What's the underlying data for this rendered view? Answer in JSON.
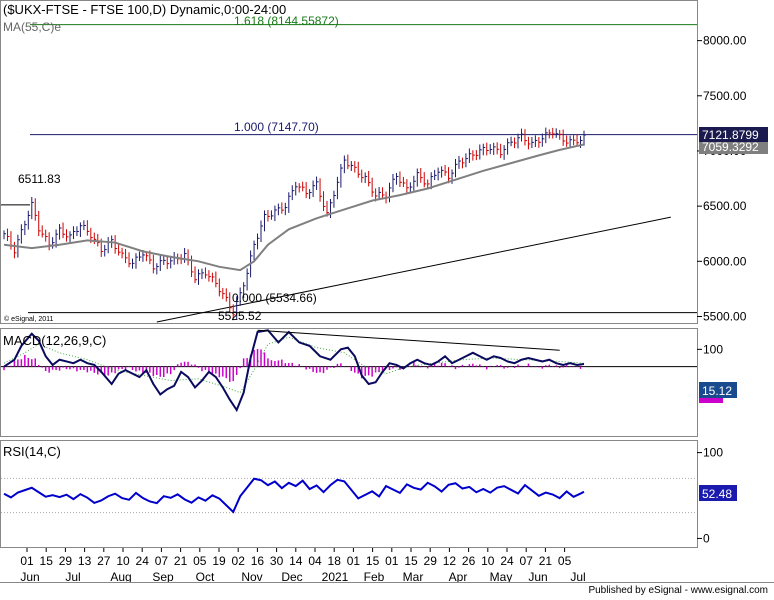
{
  "chart_data": [
    {
      "type": "line",
      "panel": "price",
      "title": "($UKX-FTSE - FTSE 100,D) Dynamic,0:00-24:00",
      "indicator_label": "MA(55,C)e",
      "watermark": "© eSignal, 2011",
      "ylim": [
        5450,
        8350
      ],
      "yticks": [
        "8000.00",
        "7500.00",
        "7000.00",
        "6500.00",
        "6000.00",
        "5500.00"
      ],
      "ytick_values": [
        8000,
        7500,
        7000,
        6500,
        6000,
        5500
      ],
      "last_price_tag": "7121.8799",
      "ma_tag": "7059.3292",
      "fib_levels": [
        {
          "label": "1.618 (8144.55872)",
          "value": 8144.56,
          "color": "#1a7a1a"
        },
        {
          "label": "1.000 (7147.70)",
          "value": 7147.7,
          "color": "#1a1a6e"
        },
        {
          "label": "0.000 (5534.66)",
          "value": 5534.66,
          "color": "#000000"
        }
      ],
      "annotations": [
        {
          "label": "6511.83",
          "value": 6511.83
        },
        {
          "label": "5525.52",
          "value": 5525.52
        }
      ],
      "price_series": [
        [
          0,
          6250
        ],
        [
          3,
          6100
        ],
        [
          6,
          6350
        ],
        [
          8,
          6511.83
        ],
        [
          10,
          6300
        ],
        [
          13,
          6150
        ],
        [
          16,
          6280
        ],
        [
          19,
          6220
        ],
        [
          22,
          6330
        ],
        [
          25,
          6240
        ],
        [
          28,
          6100
        ],
        [
          31,
          6180
        ],
        [
          34,
          6050
        ],
        [
          37,
          5980
        ],
        [
          40,
          6080
        ],
        [
          43,
          5950
        ],
        [
          46,
          6000
        ],
        [
          49,
          6010
        ],
        [
          52,
          6060
        ],
        [
          55,
          5850
        ],
        [
          58,
          5900
        ],
        [
          61,
          5800
        ],
        [
          64,
          5650
        ],
        [
          66,
          5534.66
        ],
        [
          68,
          5700
        ],
        [
          70,
          5900
        ],
        [
          72,
          6150
        ],
        [
          75,
          6400
        ],
        [
          78,
          6450
        ],
        [
          81,
          6500
        ],
        [
          84,
          6700
        ],
        [
          87,
          6620
        ],
        [
          90,
          6700
        ],
        [
          93,
          6420
        ],
        [
          96,
          6720
        ],
        [
          98,
          6920
        ],
        [
          101,
          6830
        ],
        [
          104,
          6750
        ],
        [
          107,
          6600
        ],
        [
          110,
          6600
        ],
        [
          113,
          6780
        ],
        [
          116,
          6650
        ],
        [
          119,
          6780
        ],
        [
          122,
          6700
        ],
        [
          125,
          6830
        ],
        [
          128,
          6770
        ],
        [
          131,
          6900
        ],
        [
          134,
          6950
        ],
        [
          137,
          7000
        ],
        [
          140,
          7030
        ],
        [
          143,
          6990
        ],
        [
          146,
          7080
        ],
        [
          149,
          7130
        ],
        [
          152,
          7060
        ],
        [
          155,
          7120
        ],
        [
          158,
          7180
        ],
        [
          161,
          7100
        ],
        [
          164,
          7080
        ],
        [
          167,
          7121.88
        ]
      ],
      "ma_series": [
        [
          0,
          6150
        ],
        [
          8,
          6120
        ],
        [
          16,
          6150
        ],
        [
          24,
          6190
        ],
        [
          32,
          6170
        ],
        [
          40,
          6090
        ],
        [
          48,
          6040
        ],
        [
          56,
          6000
        ],
        [
          62,
          5950
        ],
        [
          68,
          5920
        ],
        [
          72,
          6000
        ],
        [
          76,
          6150
        ],
        [
          82,
          6290
        ],
        [
          90,
          6390
        ],
        [
          98,
          6470
        ],
        [
          106,
          6550
        ],
        [
          114,
          6600
        ],
        [
          122,
          6660
        ],
        [
          130,
          6740
        ],
        [
          138,
          6820
        ],
        [
          146,
          6890
        ],
        [
          154,
          6960
        ],
        [
          160,
          7010
        ],
        [
          167,
          7059.33
        ]
      ],
      "trendline_support": [
        [
          44,
          5450
        ],
        [
          192,
          6400
        ]
      ]
    },
    {
      "type": "line",
      "panel": "macd",
      "title": "MACD(12,26,9,C)",
      "ylim": [
        -400,
        200
      ],
      "yticks": [
        "100"
      ],
      "ytick_values": [
        100
      ],
      "last_value_tag": "15.12",
      "signal_tag": "",
      "macd_series": [
        [
          0,
          0
        ],
        [
          3,
          40
        ],
        [
          5,
          120
        ],
        [
          8,
          190
        ],
        [
          10,
          150
        ],
        [
          12,
          60
        ],
        [
          14,
          10
        ],
        [
          16,
          40
        ],
        [
          18,
          30
        ],
        [
          20,
          20
        ],
        [
          22,
          40
        ],
        [
          24,
          20
        ],
        [
          26,
          10
        ],
        [
          28,
          -30
        ],
        [
          31,
          -100
        ],
        [
          33,
          -40
        ],
        [
          35,
          -20
        ],
        [
          37,
          -40
        ],
        [
          39,
          -60
        ],
        [
          41,
          -20
        ],
        [
          43,
          -100
        ],
        [
          45,
          -160
        ],
        [
          47,
          -130
        ],
        [
          49,
          -110
        ],
        [
          51,
          -30
        ],
        [
          53,
          -60
        ],
        [
          55,
          -120
        ],
        [
          57,
          -80
        ],
        [
          59,
          -30
        ],
        [
          61,
          -60
        ],
        [
          63,
          -120
        ],
        [
          65,
          -190
        ],
        [
          67,
          -250
        ],
        [
          69,
          -150
        ],
        [
          71,
          50
        ],
        [
          73,
          200
        ],
        [
          76,
          210
        ],
        [
          79,
          140
        ],
        [
          82,
          200
        ],
        [
          85,
          140
        ],
        [
          88,
          120
        ],
        [
          91,
          60
        ],
        [
          94,
          40
        ],
        [
          97,
          100
        ],
        [
          99,
          110
        ],
        [
          101,
          60
        ],
        [
          103,
          -50
        ],
        [
          105,
          -100
        ],
        [
          107,
          -90
        ],
        [
          109,
          -30
        ],
        [
          111,
          20
        ],
        [
          113,
          10
        ],
        [
          115,
          -10
        ],
        [
          117,
          20
        ],
        [
          119,
          40
        ],
        [
          121,
          20
        ],
        [
          123,
          10
        ],
        [
          125,
          30
        ],
        [
          127,
          60
        ],
        [
          129,
          20
        ],
        [
          131,
          40
        ],
        [
          133,
          60
        ],
        [
          135,
          80
        ],
        [
          137,
          60
        ],
        [
          139,
          40
        ],
        [
          141,
          60
        ],
        [
          143,
          50
        ],
        [
          145,
          30
        ],
        [
          147,
          20
        ],
        [
          149,
          40
        ],
        [
          151,
          50
        ],
        [
          153,
          40
        ],
        [
          155,
          30
        ],
        [
          157,
          40
        ],
        [
          159,
          20
        ],
        [
          161,
          10
        ],
        [
          163,
          20
        ],
        [
          165,
          10
        ],
        [
          167,
          15.12
        ]
      ],
      "signal_series": [
        [
          0,
          20
        ],
        [
          6,
          80
        ],
        [
          10,
          130
        ],
        [
          16,
          80
        ],
        [
          24,
          40
        ],
        [
          32,
          -20
        ],
        [
          40,
          -50
        ],
        [
          48,
          -80
        ],
        [
          56,
          -70
        ],
        [
          64,
          -120
        ],
        [
          68,
          -150
        ],
        [
          72,
          -20
        ],
        [
          76,
          130
        ],
        [
          82,
          170
        ],
        [
          90,
          110
        ],
        [
          98,
          80
        ],
        [
          104,
          0
        ],
        [
          110,
          -40
        ],
        [
          116,
          0
        ],
        [
          124,
          20
        ],
        [
          132,
          40
        ],
        [
          140,
          50
        ],
        [
          150,
          40
        ],
        [
          160,
          30
        ],
        [
          167,
          20
        ]
      ],
      "histogram": [
        [
          0,
          -20
        ],
        [
          3,
          30
        ],
        [
          6,
          60
        ],
        [
          9,
          40
        ],
        [
          12,
          -30
        ],
        [
          15,
          -20
        ],
        [
          18,
          -10
        ],
        [
          21,
          -20
        ],
        [
          24,
          -25
        ],
        [
          27,
          -40
        ],
        [
          30,
          -50
        ],
        [
          33,
          -20
        ],
        [
          36,
          -10
        ],
        [
          39,
          -30
        ],
        [
          42,
          -40
        ],
        [
          45,
          -60
        ],
        [
          48,
          -40
        ],
        [
          51,
          30
        ],
        [
          54,
          20
        ],
        [
          57,
          -20
        ],
        [
          60,
          -40
        ],
        [
          63,
          -60
        ],
        [
          66,
          -90
        ],
        [
          69,
          40
        ],
        [
          71,
          70
        ],
        [
          73,
          110
        ],
        [
          75,
          80
        ],
        [
          77,
          30
        ],
        [
          79,
          40
        ],
        [
          82,
          20
        ],
        [
          85,
          10
        ],
        [
          88,
          -20
        ],
        [
          91,
          -40
        ],
        [
          94,
          -10
        ],
        [
          97,
          20
        ],
        [
          100,
          -20
        ],
        [
          103,
          -60
        ],
        [
          106,
          -50
        ],
        [
          109,
          -20
        ],
        [
          112,
          -10
        ],
        [
          115,
          -10
        ],
        [
          118,
          20
        ],
        [
          121,
          -10
        ],
        [
          124,
          10
        ],
        [
          127,
          20
        ],
        [
          130,
          -10
        ],
        [
          133,
          10
        ],
        [
          136,
          15
        ],
        [
          139,
          -10
        ],
        [
          142,
          10
        ],
        [
          145,
          -10
        ],
        [
          148,
          5
        ],
        [
          151,
          10
        ],
        [
          154,
          -10
        ],
        [
          157,
          10
        ],
        [
          160,
          -5
        ],
        [
          163,
          5
        ],
        [
          166,
          -5
        ]
      ],
      "trendline_resistance": [
        [
          73,
          210
        ],
        [
          160,
          95
        ]
      ]
    },
    {
      "type": "line",
      "panel": "rsi",
      "title": "RSI(14,C)",
      "ylim": [
        -10,
        110
      ],
      "yticks": [
        "100",
        "0"
      ],
      "ytick_values": [
        100,
        0
      ],
      "last_value_tag": "52.48",
      "rsi_series": [
        [
          0,
          52
        ],
        [
          2,
          48
        ],
        [
          4,
          54
        ],
        [
          6,
          57
        ],
        [
          8,
          60
        ],
        [
          10,
          55
        ],
        [
          12,
          50
        ],
        [
          14,
          52
        ],
        [
          16,
          50
        ],
        [
          18,
          53
        ],
        [
          20,
          48
        ],
        [
          22,
          54
        ],
        [
          24,
          50
        ],
        [
          26,
          44
        ],
        [
          28,
          47
        ],
        [
          30,
          52
        ],
        [
          32,
          55
        ],
        [
          34,
          50
        ],
        [
          36,
          48
        ],
        [
          38,
          56
        ],
        [
          40,
          50
        ],
        [
          42,
          46
        ],
        [
          44,
          44
        ],
        [
          46,
          52
        ],
        [
          48,
          50
        ],
        [
          50,
          54
        ],
        [
          52,
          48
        ],
        [
          54,
          44
        ],
        [
          56,
          50
        ],
        [
          58,
          46
        ],
        [
          60,
          52
        ],
        [
          62,
          48
        ],
        [
          64,
          40
        ],
        [
          66,
          32
        ],
        [
          68,
          50
        ],
        [
          70,
          60
        ],
        [
          72,
          70
        ],
        [
          74,
          68
        ],
        [
          76,
          62
        ],
        [
          78,
          66
        ],
        [
          80,
          58
        ],
        [
          82,
          64
        ],
        [
          84,
          60
        ],
        [
          86,
          66
        ],
        [
          88,
          56
        ],
        [
          90,
          60
        ],
        [
          92,
          52
        ],
        [
          94,
          60
        ],
        [
          96,
          66
        ],
        [
          98,
          64
        ],
        [
          100,
          54
        ],
        [
          102,
          44
        ],
        [
          104,
          48
        ],
        [
          106,
          52
        ],
        [
          108,
          46
        ],
        [
          110,
          58
        ],
        [
          112,
          54
        ],
        [
          114,
          50
        ],
        [
          116,
          60
        ],
        [
          118,
          56
        ],
        [
          120,
          54
        ],
        [
          122,
          62
        ],
        [
          124,
          58
        ],
        [
          126,
          52
        ],
        [
          128,
          60
        ],
        [
          130,
          62
        ],
        [
          132,
          56
        ],
        [
          134,
          58
        ],
        [
          136,
          52
        ],
        [
          138,
          56
        ],
        [
          140,
          52
        ],
        [
          142,
          58
        ],
        [
          144,
          60
        ],
        [
          146,
          56
        ],
        [
          148,
          52
        ],
        [
          150,
          62
        ],
        [
          152,
          56
        ],
        [
          154,
          50
        ],
        [
          156,
          54
        ],
        [
          158,
          52
        ],
        [
          160,
          48
        ],
        [
          162,
          56
        ],
        [
          164,
          50
        ],
        [
          166,
          54
        ],
        [
          167,
          52.48
        ]
      ]
    }
  ],
  "x_axis": {
    "day_labels": [
      "01",
      "15",
      "29",
      "13",
      "27",
      "10",
      "24",
      "07",
      "21",
      "05",
      "19",
      "02",
      "16",
      "30",
      "14",
      "04",
      "18",
      "01",
      "15",
      "01",
      "15",
      "29",
      "12",
      "26",
      "10",
      "24",
      "07",
      "21",
      "05"
    ],
    "month_labels": [
      "Jun",
      "Jul",
      "Aug",
      "Sep",
      "Oct",
      "Nov",
      "Dec",
      "2021",
      "Feb",
      "Mar",
      "Apr",
      "May",
      "Jun",
      "Jul"
    ]
  },
  "footer": {
    "credit": "Published by eSignal - www.esignal.com"
  },
  "colors": {
    "price_up": "#1a1a6e",
    "price_down": "#cc0000",
    "ma": "#808080",
    "macd": "#0a0a5e",
    "signal": "#44aa44",
    "histogram": "#cc00cc",
    "rsi": "#0000cc",
    "fib_1618": "#1a7a1a",
    "fib_1000": "#1a1a6e"
  }
}
